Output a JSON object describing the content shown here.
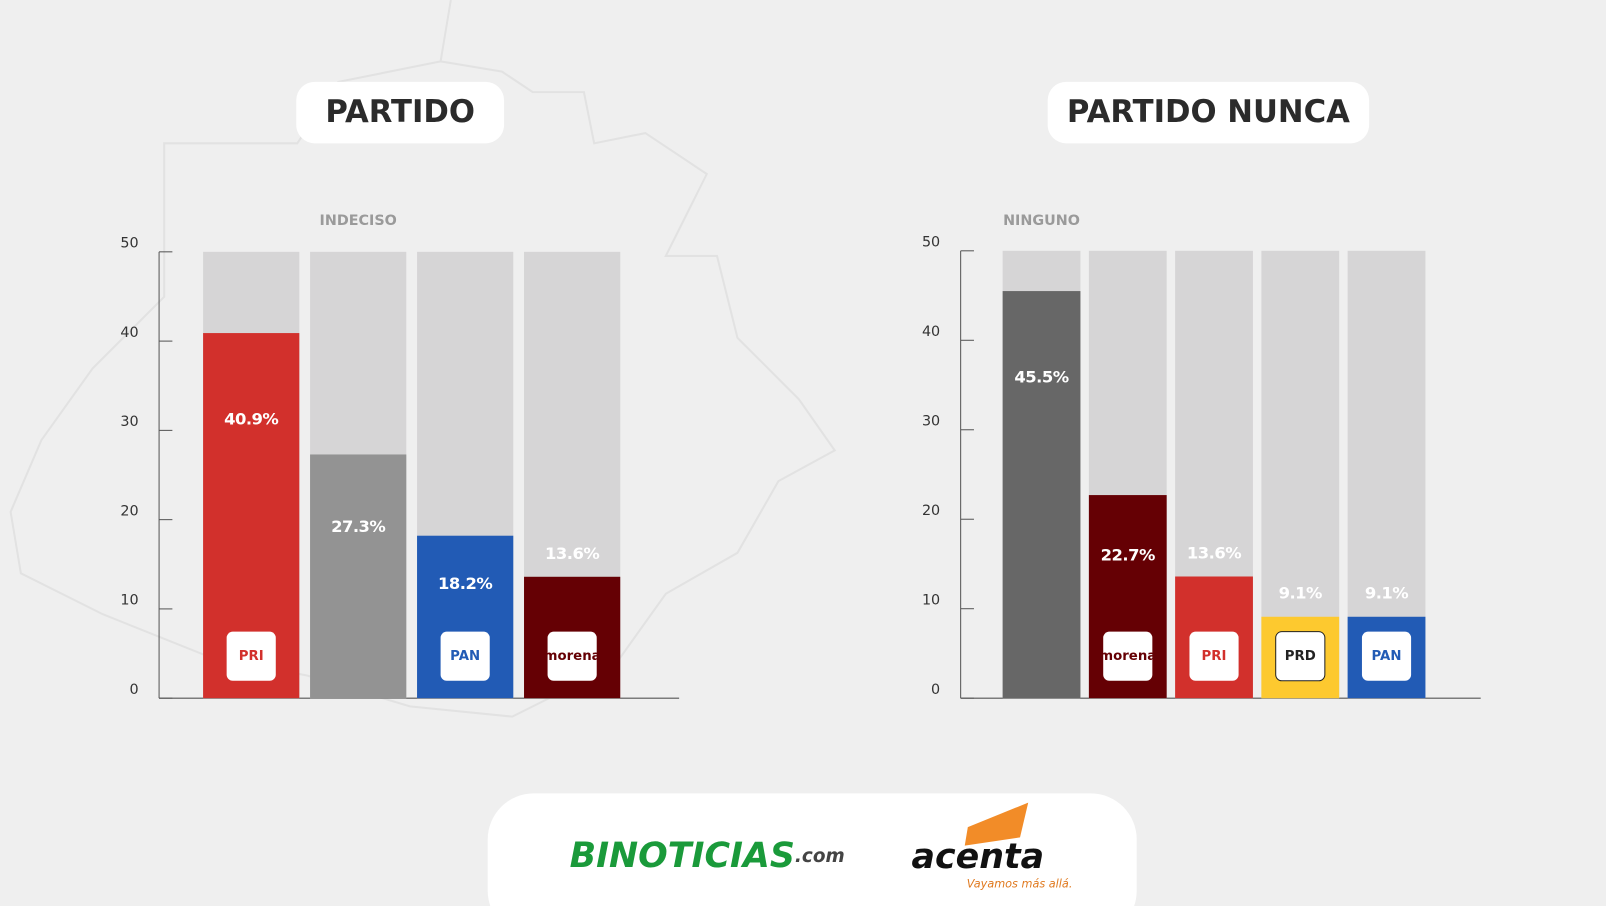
{
  "chart_data": [
    {
      "type": "bar",
      "title": "PARTIDO",
      "categories": [
        "PRI",
        "INDECISO",
        "PAN",
        "morena"
      ],
      "values": [
        40.9,
        27.3,
        18.2,
        13.6
      ],
      "value_labels": [
        "40.9%",
        "27.3%",
        "18.2%",
        "13.6%"
      ],
      "colors": [
        "#d2302c",
        "#939393",
        "#225bb5",
        "#650004"
      ],
      "ylim": [
        0,
        50
      ],
      "yticks": [
        0,
        10,
        20,
        30,
        40,
        50
      ]
    },
    {
      "type": "bar",
      "title": "PARTIDO NUNCA",
      "categories": [
        "NINGUNO",
        "morena",
        "PRI",
        "PRD",
        "PAN"
      ],
      "values": [
        45.5,
        22.7,
        13.6,
        9.1,
        9.1
      ],
      "value_labels": [
        "45.5%",
        "22.7%",
        "13.6%",
        "9.1%",
        "9.1%"
      ],
      "colors": [
        "#676767",
        "#650004",
        "#d2302c",
        "#fdc92f",
        "#225bb5"
      ],
      "ylim": [
        0,
        50
      ],
      "yticks": [
        0,
        10,
        20,
        30,
        40,
        50
      ]
    }
  ],
  "footer": {
    "brand1": "BINOTICIAS",
    "brand1_suffix": ".com",
    "brand2": "acenta",
    "brand2_tagline": "Vayamos más allá."
  }
}
